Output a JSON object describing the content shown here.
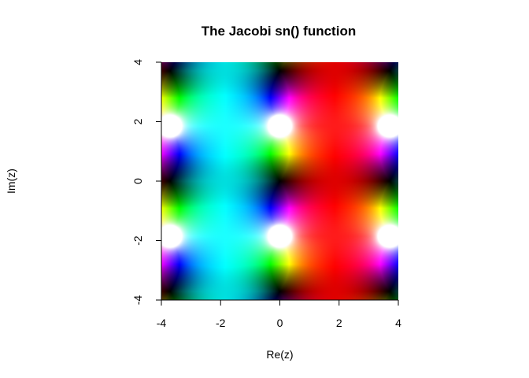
{
  "chart_data": {
    "type": "heatmap",
    "title": "The Jacobi sn() function",
    "xlabel": "Re(z)",
    "ylabel": "Im(z)",
    "xlim": [
      -4,
      4
    ],
    "ylim": [
      -4,
      4
    ],
    "xticks": [
      -4,
      -2,
      0,
      2,
      4
    ],
    "yticks": [
      -4,
      -2,
      0,
      2,
      4
    ],
    "x_tick_labels": [
      "-4",
      "-2",
      "0",
      "2",
      "4"
    ],
    "y_tick_labels": [
      "-4",
      "-2",
      "0",
      "2",
      "4"
    ],
    "grid": false,
    "legend": "none",
    "colormap": "complex phase (hue) and modulus (brightness)",
    "colors": {
      "red": "#ff0000",
      "cyan": "#00ffff",
      "blue": "#0000ff",
      "dark_red": "#6a0000",
      "dark_teal": "#1f5f5f"
    }
  }
}
